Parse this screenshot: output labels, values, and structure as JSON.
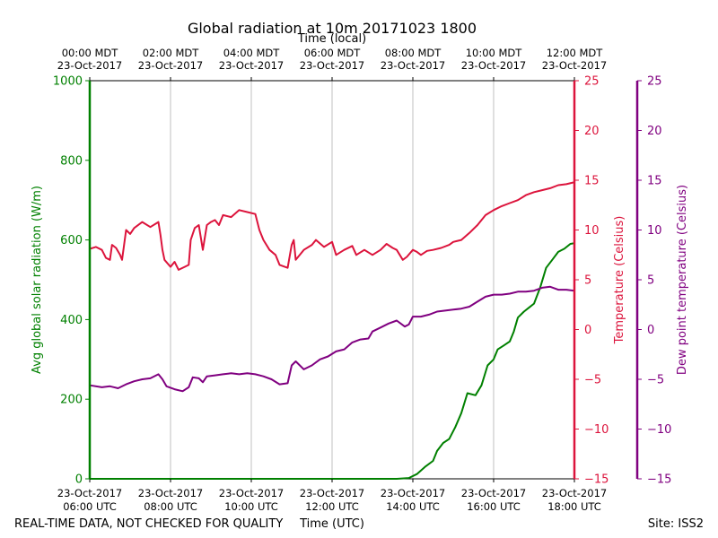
{
  "chart_data": {
    "type": "line",
    "title": "Global radiation at 10m 20171023 1800",
    "top_axis_title": "Time (local)",
    "bottom_axis_title": "Time (UTC)",
    "footer_left": "REAL-TIME DATA, NOT CHECKED FOR QUALITY",
    "footer_right": "Site: ISS2",
    "x_range_hours": [
      0,
      12
    ],
    "grid_hours": [
      2,
      4,
      6,
      8,
      10
    ],
    "top_ticks": [
      {
        "h": 0,
        "l1": "00:00 MDT",
        "l2": "23-Oct-2017"
      },
      {
        "h": 2,
        "l1": "02:00 MDT",
        "l2": "23-Oct-2017"
      },
      {
        "h": 4,
        "l1": "04:00 MDT",
        "l2": "23-Oct-2017"
      },
      {
        "h": 6,
        "l1": "06:00 MDT",
        "l2": "23-Oct-2017"
      },
      {
        "h": 8,
        "l1": "08:00 MDT",
        "l2": "23-Oct-2017"
      },
      {
        "h": 10,
        "l1": "10:00 MDT",
        "l2": "23-Oct-2017"
      },
      {
        "h": 12,
        "l1": "12:00 MDT",
        "l2": "23-Oct-2017"
      }
    ],
    "bottom_ticks": [
      {
        "h": 0,
        "l1": "23-Oct-2017",
        "l2": "06:00 UTC"
      },
      {
        "h": 2,
        "l1": "23-Oct-2017",
        "l2": "08:00 UTC"
      },
      {
        "h": 4,
        "l1": "23-Oct-2017",
        "l2": "10:00 UTC"
      },
      {
        "h": 6,
        "l1": "23-Oct-2017",
        "l2": "12:00 UTC"
      },
      {
        "h": 8,
        "l1": "23-Oct-2017",
        "l2": "14:00 UTC"
      },
      {
        "h": 10,
        "l1": "23-Oct-2017",
        "l2": "16:00 UTC"
      },
      {
        "h": 12,
        "l1": "23-Oct-2017",
        "l2": "18:00 UTC"
      }
    ],
    "axes": {
      "radiation": {
        "label": "Avg global solar radiation (W/m)",
        "range": [
          0,
          1000
        ],
        "ticks": [
          "0",
          "200",
          "400",
          "600",
          "800",
          "1000"
        ],
        "color": "#008000"
      },
      "temperature": {
        "label": "Temperature (Celsius)",
        "range": [
          -15,
          25
        ],
        "ticks": [
          "25",
          "20",
          "15",
          "10",
          "5",
          "0",
          "−5",
          "−10",
          "−15"
        ],
        "color": "#dc143c"
      },
      "dewpoint": {
        "label": "Dew point temperature (Celsius)",
        "range": [
          -15,
          25
        ],
        "ticks": [
          "25",
          "20",
          "15",
          "10",
          "5",
          "0",
          "−5",
          "−10",
          "−15"
        ],
        "color": "#800080"
      }
    },
    "series": [
      {
        "name": "Avg global solar radiation",
        "axis": "radiation",
        "color": "#008000",
        "points": [
          [
            0,
            0
          ],
          [
            7.6,
            0
          ],
          [
            7.9,
            2
          ],
          [
            8.1,
            12
          ],
          [
            8.3,
            30
          ],
          [
            8.5,
            45
          ],
          [
            8.6,
            70
          ],
          [
            8.75,
            90
          ],
          [
            8.9,
            100
          ],
          [
            9.05,
            130
          ],
          [
            9.2,
            165
          ],
          [
            9.35,
            215
          ],
          [
            9.55,
            210
          ],
          [
            9.7,
            235
          ],
          [
            9.85,
            285
          ],
          [
            10.0,
            300
          ],
          [
            10.1,
            325
          ],
          [
            10.25,
            335
          ],
          [
            10.4,
            345
          ],
          [
            10.5,
            370
          ],
          [
            10.6,
            405
          ],
          [
            10.75,
            420
          ],
          [
            10.9,
            432
          ],
          [
            11.0,
            440
          ],
          [
            11.15,
            480
          ],
          [
            11.3,
            530
          ],
          [
            11.45,
            550
          ],
          [
            11.6,
            570
          ],
          [
            11.75,
            578
          ],
          [
            11.9,
            590
          ],
          [
            12.0,
            592
          ]
        ]
      },
      {
        "name": "Temperature",
        "axis": "temperature",
        "color": "#dc143c",
        "points": [
          [
            0,
            8.1
          ],
          [
            0.15,
            8.3
          ],
          [
            0.3,
            8.0
          ],
          [
            0.4,
            7.2
          ],
          [
            0.5,
            7.0
          ],
          [
            0.55,
            8.5
          ],
          [
            0.65,
            8.2
          ],
          [
            0.75,
            7.5
          ],
          [
            0.8,
            7.0
          ],
          [
            0.9,
            10.0
          ],
          [
            1.0,
            9.6
          ],
          [
            1.1,
            10.2
          ],
          [
            1.3,
            10.8
          ],
          [
            1.5,
            10.3
          ],
          [
            1.7,
            10.8
          ],
          [
            1.75,
            9.5
          ],
          [
            1.8,
            8.0
          ],
          [
            1.85,
            7.0
          ],
          [
            2.0,
            6.3
          ],
          [
            2.1,
            6.8
          ],
          [
            2.2,
            6.0
          ],
          [
            2.35,
            6.3
          ],
          [
            2.45,
            6.5
          ],
          [
            2.5,
            9.0
          ],
          [
            2.6,
            10.2
          ],
          [
            2.7,
            10.5
          ],
          [
            2.8,
            8.0
          ],
          [
            2.9,
            10.5
          ],
          [
            3.0,
            10.8
          ],
          [
            3.1,
            11.0
          ],
          [
            3.2,
            10.5
          ],
          [
            3.3,
            11.5
          ],
          [
            3.5,
            11.3
          ],
          [
            3.7,
            12.0
          ],
          [
            3.9,
            11.8
          ],
          [
            4.1,
            11.6
          ],
          [
            4.2,
            10.0
          ],
          [
            4.3,
            9.0
          ],
          [
            4.45,
            8.0
          ],
          [
            4.6,
            7.5
          ],
          [
            4.7,
            6.5
          ],
          [
            4.9,
            6.2
          ],
          [
            5.0,
            8.5
          ],
          [
            5.05,
            9.0
          ],
          [
            5.1,
            7.0
          ],
          [
            5.3,
            8.0
          ],
          [
            5.5,
            8.5
          ],
          [
            5.6,
            9.0
          ],
          [
            5.8,
            8.3
          ],
          [
            6.0,
            8.8
          ],
          [
            6.1,
            7.5
          ],
          [
            6.3,
            8.0
          ],
          [
            6.5,
            8.4
          ],
          [
            6.6,
            7.5
          ],
          [
            6.8,
            8.0
          ],
          [
            7.0,
            7.5
          ],
          [
            7.2,
            8.0
          ],
          [
            7.35,
            8.6
          ],
          [
            7.5,
            8.2
          ],
          [
            7.6,
            8.0
          ],
          [
            7.75,
            7.0
          ],
          [
            7.85,
            7.3
          ],
          [
            8.0,
            8.0
          ],
          [
            8.1,
            7.8
          ],
          [
            8.2,
            7.5
          ],
          [
            8.35,
            7.9
          ],
          [
            8.5,
            8.0
          ],
          [
            8.7,
            8.2
          ],
          [
            8.9,
            8.5
          ],
          [
            9.0,
            8.8
          ],
          [
            9.2,
            9.0
          ],
          [
            9.4,
            9.7
          ],
          [
            9.6,
            10.5
          ],
          [
            9.8,
            11.5
          ],
          [
            10.0,
            12.0
          ],
          [
            10.2,
            12.4
          ],
          [
            10.4,
            12.7
          ],
          [
            10.6,
            13.0
          ],
          [
            10.8,
            13.5
          ],
          [
            11.0,
            13.8
          ],
          [
            11.2,
            14.0
          ],
          [
            11.4,
            14.2
          ],
          [
            11.6,
            14.5
          ],
          [
            11.8,
            14.6
          ],
          [
            12.0,
            14.8
          ]
        ]
      },
      {
        "name": "Dew point temperature",
        "axis": "dewpoint",
        "color": "#800080",
        "points": [
          [
            0,
            -5.6
          ],
          [
            0.3,
            -5.8
          ],
          [
            0.5,
            -5.7
          ],
          [
            0.7,
            -5.9
          ],
          [
            0.9,
            -5.5
          ],
          [
            1.1,
            -5.2
          ],
          [
            1.3,
            -5.0
          ],
          [
            1.5,
            -4.9
          ],
          [
            1.7,
            -4.5
          ],
          [
            1.8,
            -5.0
          ],
          [
            1.9,
            -5.7
          ],
          [
            2.1,
            -6.0
          ],
          [
            2.3,
            -6.2
          ],
          [
            2.45,
            -5.8
          ],
          [
            2.55,
            -4.8
          ],
          [
            2.7,
            -4.9
          ],
          [
            2.8,
            -5.3
          ],
          [
            2.9,
            -4.7
          ],
          [
            3.1,
            -4.6
          ],
          [
            3.3,
            -4.5
          ],
          [
            3.5,
            -4.4
          ],
          [
            3.7,
            -4.5
          ],
          [
            3.9,
            -4.4
          ],
          [
            4.1,
            -4.5
          ],
          [
            4.3,
            -4.7
          ],
          [
            4.5,
            -5.0
          ],
          [
            4.7,
            -5.5
          ],
          [
            4.9,
            -5.4
          ],
          [
            5.0,
            -3.6
          ],
          [
            5.1,
            -3.2
          ],
          [
            5.3,
            -4.0
          ],
          [
            5.5,
            -3.6
          ],
          [
            5.7,
            -3.0
          ],
          [
            5.9,
            -2.7
          ],
          [
            6.1,
            -2.2
          ],
          [
            6.3,
            -2.0
          ],
          [
            6.5,
            -1.3
          ],
          [
            6.7,
            -1.0
          ],
          [
            6.9,
            -0.9
          ],
          [
            7.0,
            -0.2
          ],
          [
            7.2,
            0.2
          ],
          [
            7.4,
            0.6
          ],
          [
            7.6,
            0.9
          ],
          [
            7.8,
            0.3
          ],
          [
            7.9,
            0.5
          ],
          [
            8.0,
            1.3
          ],
          [
            8.2,
            1.3
          ],
          [
            8.4,
            1.5
          ],
          [
            8.6,
            1.8
          ],
          [
            8.8,
            1.9
          ],
          [
            9.0,
            2.0
          ],
          [
            9.2,
            2.1
          ],
          [
            9.4,
            2.3
          ],
          [
            9.6,
            2.8
          ],
          [
            9.8,
            3.3
          ],
          [
            10.0,
            3.5
          ],
          [
            10.2,
            3.5
          ],
          [
            10.4,
            3.6
          ],
          [
            10.6,
            3.8
          ],
          [
            10.8,
            3.8
          ],
          [
            11.0,
            3.9
          ],
          [
            11.2,
            4.2
          ],
          [
            11.4,
            4.3
          ],
          [
            11.6,
            4.0
          ],
          [
            11.8,
            4.0
          ],
          [
            12.0,
            3.9
          ]
        ]
      }
    ]
  }
}
